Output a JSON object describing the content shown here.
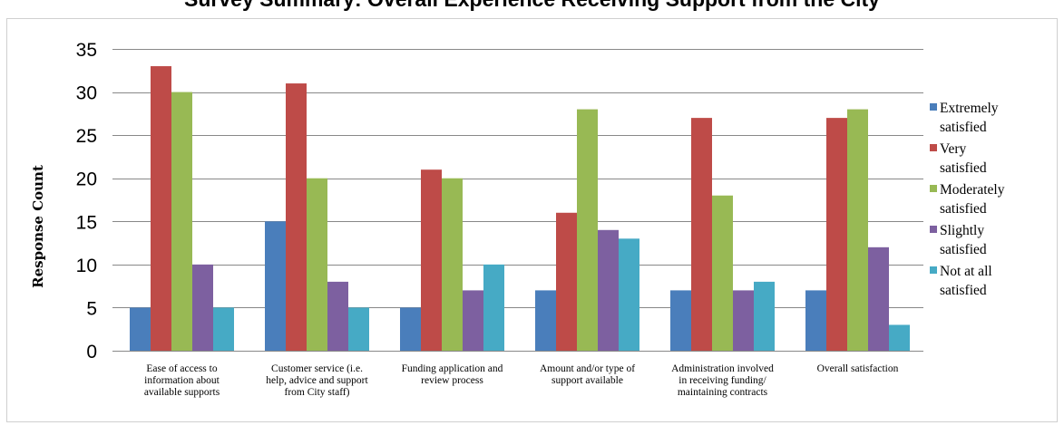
{
  "chart_data": {
    "type": "bar",
    "title": "Survey Summary: Overall Experience Receiving Support from the City",
    "ylabel": "Response Count",
    "xlabel": "",
    "ylim": [
      0,
      35
    ],
    "yticks": [
      0,
      5,
      10,
      15,
      20,
      25,
      30,
      35
    ],
    "grid": true,
    "legend_position": "right",
    "categories": [
      [
        "Ease of access to",
        "information about",
        "available supports"
      ],
      [
        "Customer service (i.e.",
        "help, advice and support",
        "from City staff)"
      ],
      [
        "Funding application and",
        "review process"
      ],
      [
        "Amount and/or type of",
        "support available"
      ],
      [
        "Administration involved",
        "in receiving funding/",
        "maintaining contracts"
      ],
      [
        "Overall satisfaction"
      ]
    ],
    "series": [
      {
        "name": [
          "Extremely",
          "satisfied"
        ],
        "color": "#4a7ebb",
        "values": [
          5,
          15,
          5,
          7,
          7,
          7
        ]
      },
      {
        "name": [
          "Very",
          "satisfied"
        ],
        "color": "#be4b48",
        "values": [
          33,
          31,
          21,
          16,
          27,
          27
        ]
      },
      {
        "name": [
          "Moderately",
          "satisfied"
        ],
        "color": "#98b954",
        "values": [
          30,
          20,
          20,
          28,
          18,
          28
        ]
      },
      {
        "name": [
          "Slightly",
          "satisfied"
        ],
        "color": "#7d60a0",
        "values": [
          10,
          8,
          7,
          14,
          7,
          12
        ]
      },
      {
        "name": [
          "Not at all",
          "satisfied"
        ],
        "color": "#46aac5",
        "values": [
          5,
          5,
          10,
          13,
          8,
          3
        ]
      }
    ]
  }
}
